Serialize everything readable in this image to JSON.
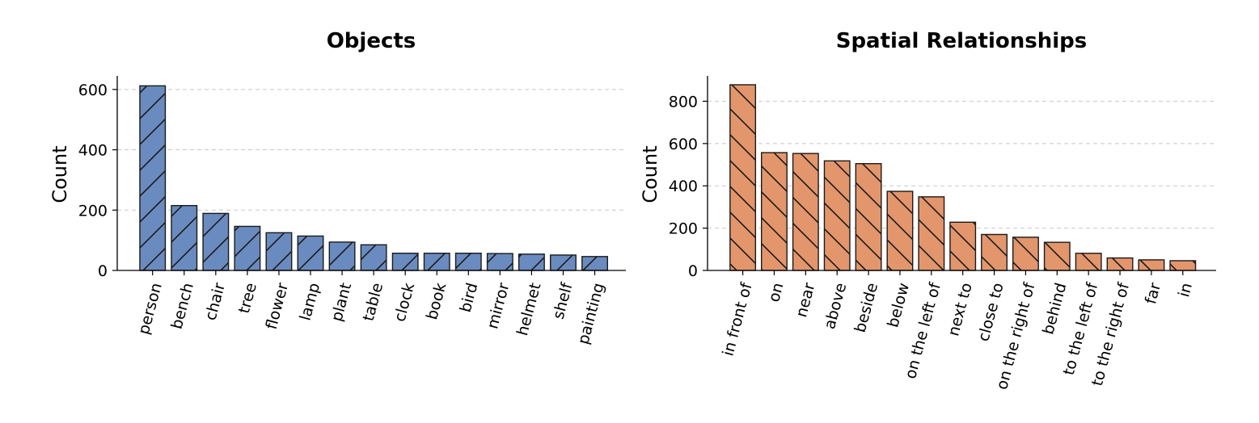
{
  "chart_data": [
    {
      "type": "bar",
      "title": "Objects",
      "xlabel": "",
      "ylabel": "Count",
      "ylim": [
        0,
        645
      ],
      "yticks": [
        0,
        200,
        400,
        600
      ],
      "grid": "horizontal-dashed",
      "color": "#6a8bbf",
      "hatch": "forward-diagonal",
      "categories": [
        "person",
        "bench",
        "chair",
        "tree",
        "flower",
        "lamp",
        "plant",
        "table",
        "clock",
        "book",
        "bird",
        "mirror",
        "helmet",
        "shelf",
        "painting"
      ],
      "values": [
        612,
        215,
        189,
        146,
        125,
        114,
        94,
        85,
        57,
        57,
        57,
        56,
        54,
        51,
        46
      ]
    },
    {
      "type": "bar",
      "title": "Spatial Relationships",
      "xlabel": "",
      "ylabel": "Count",
      "ylim": [
        0,
        920
      ],
      "yticks": [
        0,
        200,
        400,
        600,
        800
      ],
      "grid": "horizontal-dashed",
      "color": "#e3966b",
      "hatch": "back-diagonal",
      "categories": [
        "in front of",
        "on",
        "near",
        "above",
        "beside",
        "below",
        "on the left of",
        "next to",
        "close to",
        "on the right of",
        "behind",
        "to the left of",
        "to the right of",
        "far",
        "in"
      ],
      "values": [
        878,
        557,
        553,
        518,
        505,
        374,
        348,
        228,
        170,
        157,
        133,
        81,
        59,
        50,
        46
      ]
    }
  ]
}
